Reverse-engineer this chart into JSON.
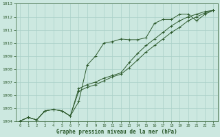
{
  "title": "Graphe pression niveau de la mer (hPa)",
  "bg_color": "#cce8e0",
  "grid_color": "#aad0c8",
  "line_color": "#2d5a2d",
  "xlim": [
    -0.5,
    23.5
  ],
  "ylim": [
    1004,
    1013
  ],
  "xticks": [
    0,
    1,
    2,
    3,
    4,
    5,
    6,
    7,
    8,
    9,
    10,
    11,
    12,
    13,
    14,
    15,
    16,
    17,
    18,
    19,
    20,
    21,
    22,
    23
  ],
  "yticks": [
    1004,
    1005,
    1006,
    1007,
    1008,
    1009,
    1010,
    1011,
    1012,
    1013
  ],
  "series": [
    [
      1004.0,
      1004.3,
      1004.1,
      1004.8,
      1004.9,
      1004.8,
      1004.4,
      1005.5,
      1008.3,
      1009.0,
      1010.0,
      1010.1,
      1010.3,
      1010.25,
      1010.25,
      1010.4,
      1011.5,
      1011.8,
      1011.8,
      1012.2,
      1012.2,
      1011.7,
      1012.2,
      1012.5
    ],
    [
      1004.0,
      1004.3,
      1004.1,
      1004.8,
      1004.9,
      1004.8,
      1004.4,
      1006.5,
      1006.8,
      1007.0,
      1007.3,
      1007.5,
      1007.7,
      1008.5,
      1009.2,
      1009.8,
      1010.3,
      1010.8,
      1011.3,
      1011.7,
      1012.0,
      1012.2,
      1012.4,
      1012.5
    ],
    [
      1004.0,
      1004.3,
      1004.1,
      1004.8,
      1004.9,
      1004.8,
      1004.4,
      1006.3,
      1006.6,
      1006.8,
      1007.1,
      1007.4,
      1007.6,
      1008.1,
      1008.7,
      1009.3,
      1009.8,
      1010.3,
      1010.8,
      1011.2,
      1011.7,
      1012.0,
      1012.3,
      1012.5
    ]
  ]
}
